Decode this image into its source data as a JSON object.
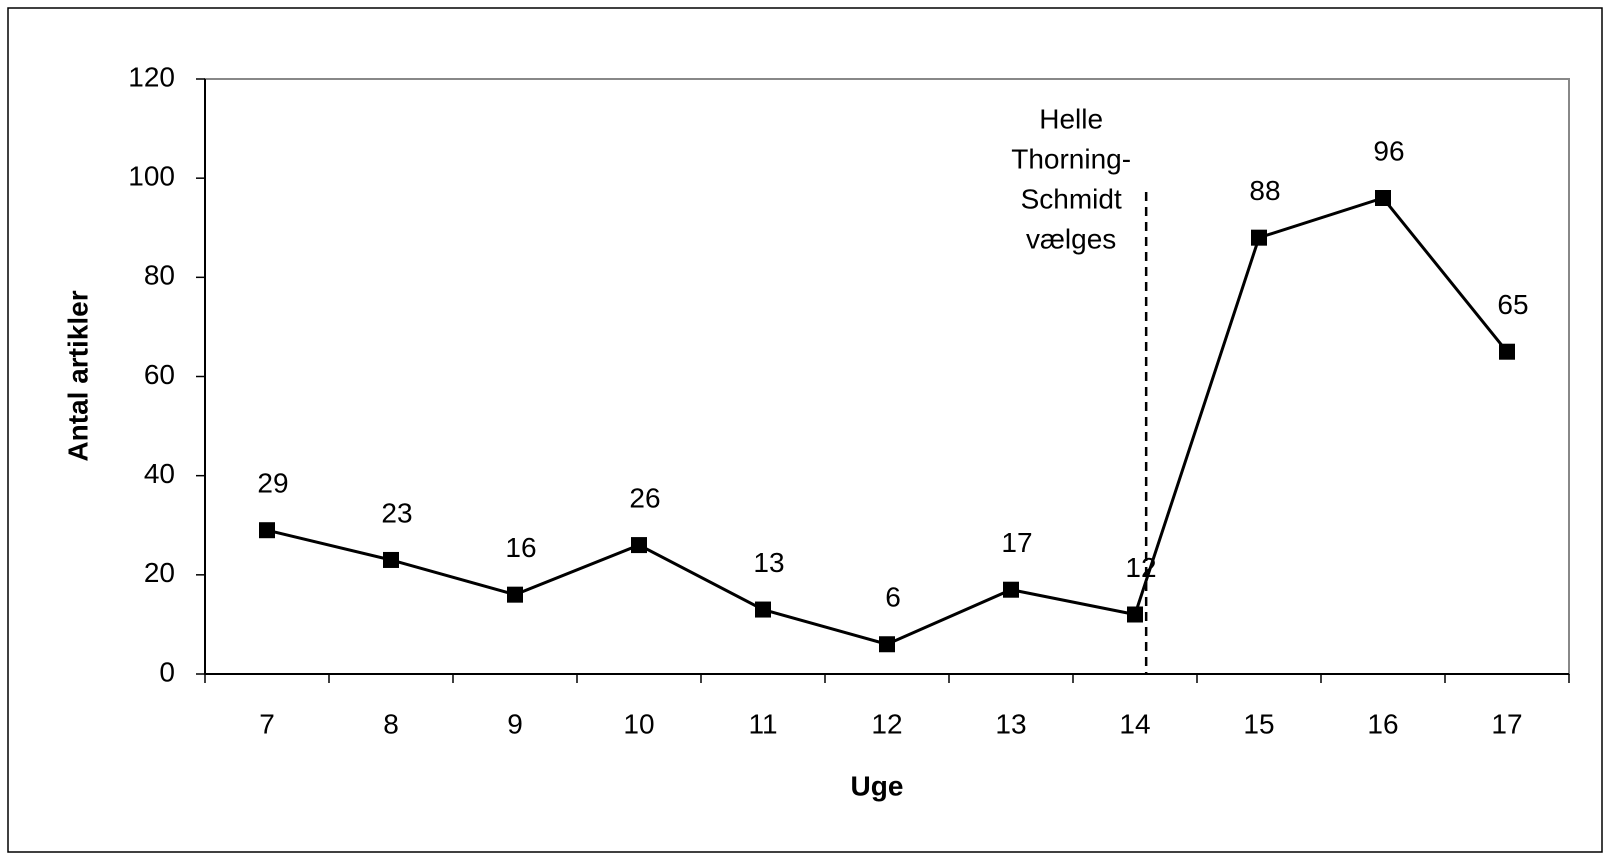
{
  "chart_data": {
    "type": "line",
    "x_label": "Uge",
    "y_label": "Antal artikler",
    "categories": [
      "7",
      "8",
      "9",
      "10",
      "11",
      "12",
      "13",
      "14",
      "15",
      "16",
      "17"
    ],
    "values": [
      29,
      23,
      16,
      26,
      13,
      6,
      17,
      12,
      88,
      96,
      65
    ],
    "color": "#000000",
    "ylim": [
      0,
      120
    ],
    "yticks": [
      0,
      20,
      40,
      60,
      80,
      100,
      120
    ],
    "grid": false,
    "annotation": [
      "Helle",
      "Thorning-",
      "Schmidt",
      "vælges"
    ]
  }
}
